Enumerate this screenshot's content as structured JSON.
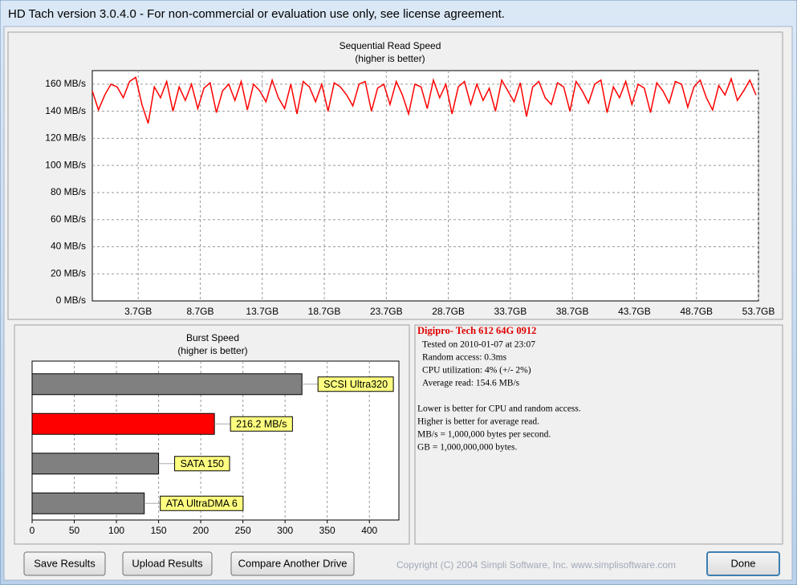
{
  "window": {
    "title": "HD Tach version 3.0.4.0  - For non-commercial or evaluation use only, see license agreement."
  },
  "chart_data": [
    {
      "type": "line",
      "title": "Sequential Read Speed",
      "subtitle": "(higher is better)",
      "x": [
        0,
        0.5,
        1,
        1.5,
        2,
        2.5,
        3,
        3.5,
        4,
        4.5,
        5,
        5.5,
        6,
        6.5,
        7,
        7.5,
        8,
        8.5,
        9,
        9.5,
        10,
        10.5,
        11,
        11.5,
        12,
        12.5,
        13,
        13.5,
        14,
        14.5,
        15,
        15.5,
        16,
        16.5,
        17,
        17.5,
        18,
        18.5,
        19,
        19.5,
        20,
        20.5,
        21,
        21.5,
        22,
        22.5,
        23,
        23.5,
        24,
        24.5,
        25,
        25.5,
        26,
        26.5,
        27,
        27.5,
        28,
        28.5,
        29,
        29.5,
        30,
        30.5,
        31,
        31.5,
        32,
        32.5,
        33,
        33.5,
        34,
        34.5,
        35,
        35.5,
        36,
        36.5,
        37,
        37.5,
        38,
        38.5,
        39,
        39.5,
        40,
        40.5,
        41,
        41.5,
        42,
        42.5,
        43,
        43.5,
        44,
        44.5,
        45,
        45.5,
        46,
        46.5,
        47,
        47.5,
        48,
        48.5,
        49,
        49.5,
        50,
        50.5,
        51,
        51.5,
        52,
        52.5,
        53,
        53.5
      ],
      "series": [
        {
          "color": "#ff0000",
          "values": [
            155,
            141,
            152,
            160,
            158,
            150,
            162,
            165,
            145,
            131,
            158,
            150,
            162,
            140,
            158,
            148,
            160,
            142,
            157,
            161,
            139,
            155,
            160,
            148,
            162,
            141,
            160,
            155,
            147,
            163,
            150,
            142,
            160,
            138,
            162,
            158,
            147,
            160,
            140,
            161,
            158,
            152,
            144,
            160,
            162,
            140,
            157,
            160,
            145,
            162,
            152,
            138,
            160,
            158,
            142,
            163,
            150,
            160,
            138,
            158,
            162,
            145,
            160,
            148,
            157,
            140,
            163,
            155,
            147,
            161,
            136,
            158,
            162,
            150,
            145,
            161,
            158,
            140,
            162,
            155,
            146,
            160,
            163,
            139,
            158,
            150,
            162,
            145,
            160,
            157,
            139,
            161,
            155,
            146,
            162,
            160,
            143,
            158,
            163,
            150,
            141,
            159,
            152,
            164,
            148,
            155,
            163,
            152
          ]
        }
      ],
      "xlim": [
        0,
        53.7
      ],
      "xticks": [
        {
          "value": 3.7,
          "label": "3.7GB"
        },
        {
          "value": 8.7,
          "label": "8.7GB"
        },
        {
          "value": 13.7,
          "label": "13.7GB"
        },
        {
          "value": 18.7,
          "label": "18.7GB"
        },
        {
          "value": 23.7,
          "label": "23.7GB"
        },
        {
          "value": 28.7,
          "label": "28.7GB"
        },
        {
          "value": 33.7,
          "label": "33.7GB"
        },
        {
          "value": 38.7,
          "label": "38.7GB"
        },
        {
          "value": 43.7,
          "label": "43.7GB"
        },
        {
          "value": 48.7,
          "label": "48.7GB"
        },
        {
          "value": 53.7,
          "label": "53.7GB"
        }
      ],
      "ylim": [
        0,
        170
      ],
      "yticks": [
        {
          "value": 0,
          "label": "0 MB/s"
        },
        {
          "value": 20,
          "label": "20 MB/s"
        },
        {
          "value": 40,
          "label": "40 MB/s"
        },
        {
          "value": 60,
          "label": "60 MB/s"
        },
        {
          "value": 80,
          "label": "80 MB/s"
        },
        {
          "value": 100,
          "label": "100 MB/s"
        },
        {
          "value": 120,
          "label": "120 MB/s"
        },
        {
          "value": 140,
          "label": "140 MB/s"
        },
        {
          "value": 160,
          "label": "160 MB/s"
        }
      ],
      "grid": true
    },
    {
      "type": "hbar",
      "title": "Burst Speed",
      "subtitle": "(higher is better)",
      "categories": [
        "SCSI Ultra320",
        null,
        "SATA 150",
        "ATA UltraDMA 6"
      ],
      "values": [
        320,
        216.2,
        150,
        133
      ],
      "value_labels": [
        null,
        "216.2 MB/s",
        null,
        null
      ],
      "colors": [
        "#808080",
        "#ff0000",
        "#808080",
        "#808080"
      ],
      "xlim": [
        0,
        435
      ],
      "xticks": [
        0,
        50,
        100,
        150,
        200,
        250,
        300,
        350,
        400
      ],
      "grid": true
    }
  ],
  "info": {
    "heading": "Digipro- Tech 612 64G 0912",
    "details": [
      "Tested on 2010-01-07 at 23:07",
      "Random access: 0.3ms",
      "CPU utilization: 4% (+/- 2%)",
      "Average read: 154.6 MB/s"
    ],
    "notes": [
      "Lower is better for CPU and random access.",
      "Higher is better for average read.",
      "MB/s = 1,000,000 bytes per second.",
      "GB = 1,000,000,000 bytes."
    ]
  },
  "buttons": [
    "Save Results",
    "Upload Results",
    "Compare Another Drive",
    "Done"
  ],
  "footer": {
    "copyright": "Copyright (C) 2004 Simpli Software, Inc. www.simplisoftware.com"
  }
}
